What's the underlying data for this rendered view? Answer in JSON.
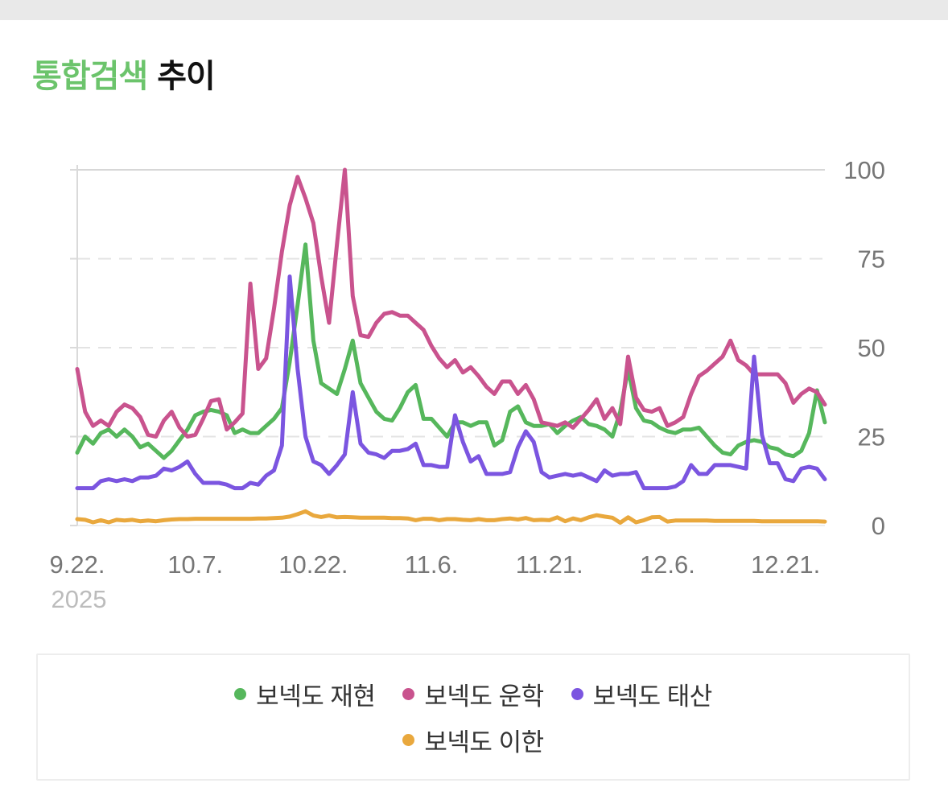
{
  "title": {
    "highlight": "통합검색",
    "rest": "추이",
    "highlight_color": "#6cc46c"
  },
  "top_strip_color": "#e9e9e9",
  "chart_data": {
    "type": "line",
    "title": "통합검색 추이",
    "xlabel": "",
    "ylabel": "",
    "ylim": [
      0,
      100
    ],
    "y_ticks": [
      0,
      25,
      50,
      75,
      100
    ],
    "grid": "horizontal, dashed except top solid",
    "legend_position": "bottom",
    "x_tick_labels": [
      "9.22.",
      "10.7.",
      "10.22.",
      "11.6.",
      "11.21.",
      "12.6.",
      "12.21."
    ],
    "x_tick_indices": [
      0,
      15,
      30,
      45,
      60,
      75,
      90
    ],
    "x_axis_year_label": "2025",
    "x": [
      "9.22.",
      "9.23.",
      "9.24.",
      "9.25.",
      "9.26.",
      "9.27.",
      "9.28.",
      "9.29.",
      "9.30.",
      "10.1.",
      "10.2.",
      "10.3.",
      "10.4.",
      "10.5.",
      "10.6.",
      "10.7.",
      "10.8.",
      "10.9.",
      "10.10.",
      "10.11.",
      "10.12.",
      "10.13.",
      "10.14.",
      "10.15.",
      "10.16.",
      "10.17.",
      "10.18.",
      "10.19.",
      "10.20.",
      "10.21.",
      "10.22.",
      "10.23.",
      "10.24.",
      "10.25.",
      "10.26.",
      "10.27.",
      "10.28.",
      "10.29.",
      "10.30.",
      "10.31.",
      "11.1.",
      "11.2.",
      "11.3.",
      "11.4.",
      "11.5.",
      "11.6.",
      "11.7.",
      "11.8.",
      "11.9.",
      "11.10.",
      "11.11.",
      "11.12.",
      "11.13.",
      "11.14.",
      "11.15.",
      "11.16.",
      "11.17.",
      "11.18.",
      "11.19.",
      "11.20.",
      "11.21.",
      "11.22.",
      "11.23.",
      "11.24.",
      "11.25.",
      "11.26.",
      "11.27.",
      "11.28.",
      "11.29.",
      "11.30.",
      "12.1.",
      "12.2.",
      "12.3.",
      "12.4.",
      "12.5.",
      "12.6.",
      "12.7.",
      "12.8.",
      "12.9.",
      "12.10.",
      "12.11.",
      "12.12.",
      "12.13.",
      "12.14.",
      "12.15.",
      "12.16.",
      "12.17.",
      "12.18.",
      "12.19.",
      "12.20.",
      "12.21.",
      "12.22.",
      "12.23.",
      "12.24.",
      "12.25.",
      "12.26."
    ],
    "series": [
      {
        "name": "보넥도 재현",
        "color": "#56b75c",
        "values": [
          20.5,
          25,
          23,
          26,
          27,
          25,
          27,
          25,
          22,
          23,
          21,
          19,
          21,
          24,
          27,
          31,
          32,
          32.5,
          32,
          31,
          26,
          27,
          26,
          26,
          28,
          30,
          33,
          46,
          62,
          79,
          52,
          40,
          38.5,
          37,
          44,
          52,
          40,
          36,
          32,
          30,
          29.5,
          33,
          37.5,
          39.5,
          30,
          30,
          27.5,
          25,
          29,
          29,
          28,
          29,
          29,
          22.5,
          24,
          32,
          33.5,
          29,
          28,
          28,
          28.5,
          26,
          28,
          29.5,
          30.5,
          28.5,
          28,
          27,
          25,
          32,
          44,
          33,
          29.5,
          29,
          27.5,
          26.5,
          26,
          27,
          27,
          27.5,
          25,
          22.5,
          20.5,
          20,
          22.5,
          23.5,
          24,
          23.5,
          22,
          21.5,
          20,
          19.5,
          21,
          26,
          38,
          29
        ]
      },
      {
        "name": "보넥도 운학",
        "color": "#c9538e",
        "values": [
          44,
          32,
          28,
          29.5,
          28,
          32,
          34,
          33,
          30.5,
          25.5,
          25,
          29.5,
          32,
          27.5,
          25,
          25.5,
          30,
          35,
          35.5,
          27,
          29,
          31.5,
          68,
          44,
          47,
          61,
          77,
          90,
          98,
          92,
          85,
          70,
          57,
          79,
          100,
          64.5,
          53.5,
          53,
          57,
          59.5,
          60,
          59,
          59,
          57,
          55,
          50.5,
          47,
          44.5,
          46.5,
          43,
          44.5,
          42,
          39,
          37,
          40.5,
          40.5,
          37,
          39.5,
          35.5,
          29,
          28.5,
          28,
          29,
          27.5,
          30,
          32.5,
          35.5,
          30,
          33,
          28.5,
          47.5,
          36,
          32.5,
          32,
          33,
          28,
          29,
          30.5,
          37,
          42,
          43.5,
          45.5,
          47.5,
          52,
          46.5,
          45,
          42.5,
          42.5,
          42.5,
          42.5,
          40,
          34.5,
          37,
          38.5,
          37.5,
          34
        ]
      },
      {
        "name": "보넥도 태산",
        "color": "#7b55e0",
        "values": [
          10.5,
          10.5,
          10.5,
          12.5,
          13,
          12.5,
          13,
          12.5,
          13.5,
          13.5,
          14,
          16,
          15.5,
          16.5,
          18,
          14.5,
          12,
          12,
          12,
          11.5,
          10.5,
          10.5,
          12,
          11.5,
          14,
          15.5,
          22.5,
          70,
          44,
          25,
          18,
          17,
          14.5,
          17,
          20,
          37.5,
          23,
          20.5,
          20,
          19,
          21,
          21,
          21.5,
          23,
          17,
          17,
          16.5,
          16.5,
          31,
          23.5,
          18,
          19.5,
          14.5,
          14.5,
          14.5,
          15,
          22,
          26.5,
          23.5,
          15,
          13.5,
          14,
          14.5,
          14,
          14.5,
          13.5,
          12.5,
          15.5,
          14,
          14.5,
          14.5,
          15,
          10.5,
          10.5,
          10.5,
          10.5,
          11,
          12.5,
          17,
          14.5,
          14.5,
          17,
          17,
          17,
          16.5,
          16,
          47.5,
          25.5,
          17.5,
          17.5,
          13,
          12.5,
          16,
          16.5,
          16,
          13
        ]
      },
      {
        "name": "보넥도 이한",
        "color": "#e9a83d",
        "values": [
          1.8,
          1.6,
          0.9,
          1.5,
          0.9,
          1.6,
          1.4,
          1.6,
          1.2,
          1.4,
          1.2,
          1.5,
          1.7,
          1.8,
          1.8,
          1.9,
          1.9,
          1.9,
          1.9,
          1.9,
          1.9,
          1.9,
          1.9,
          2,
          2,
          2.1,
          2.2,
          2.5,
          3.2,
          4,
          2.8,
          2.4,
          2.8,
          2.3,
          2.4,
          2.3,
          2.2,
          2.2,
          2.2,
          2.2,
          2.1,
          2.1,
          2,
          1.5,
          1.9,
          1.9,
          1.5,
          1.8,
          1.8,
          1.6,
          1.5,
          1.8,
          1.5,
          1.5,
          1.8,
          2,
          1.7,
          2.1,
          1.5,
          1.6,
          1.5,
          2.3,
          1.2,
          2,
          1.5,
          2.3,
          2.9,
          2.5,
          2.2,
          0.8,
          2.3,
          0.9,
          1.5,
          2.3,
          2.4,
          1.1,
          1.4,
          1.4,
          1.4,
          1.4,
          1.4,
          1.3,
          1.3,
          1.3,
          1.3,
          1.3,
          1.3,
          1.2,
          1.2,
          1.2,
          1.2,
          1.2,
          1.2,
          1.2,
          1.2,
          1.1
        ]
      }
    ]
  }
}
